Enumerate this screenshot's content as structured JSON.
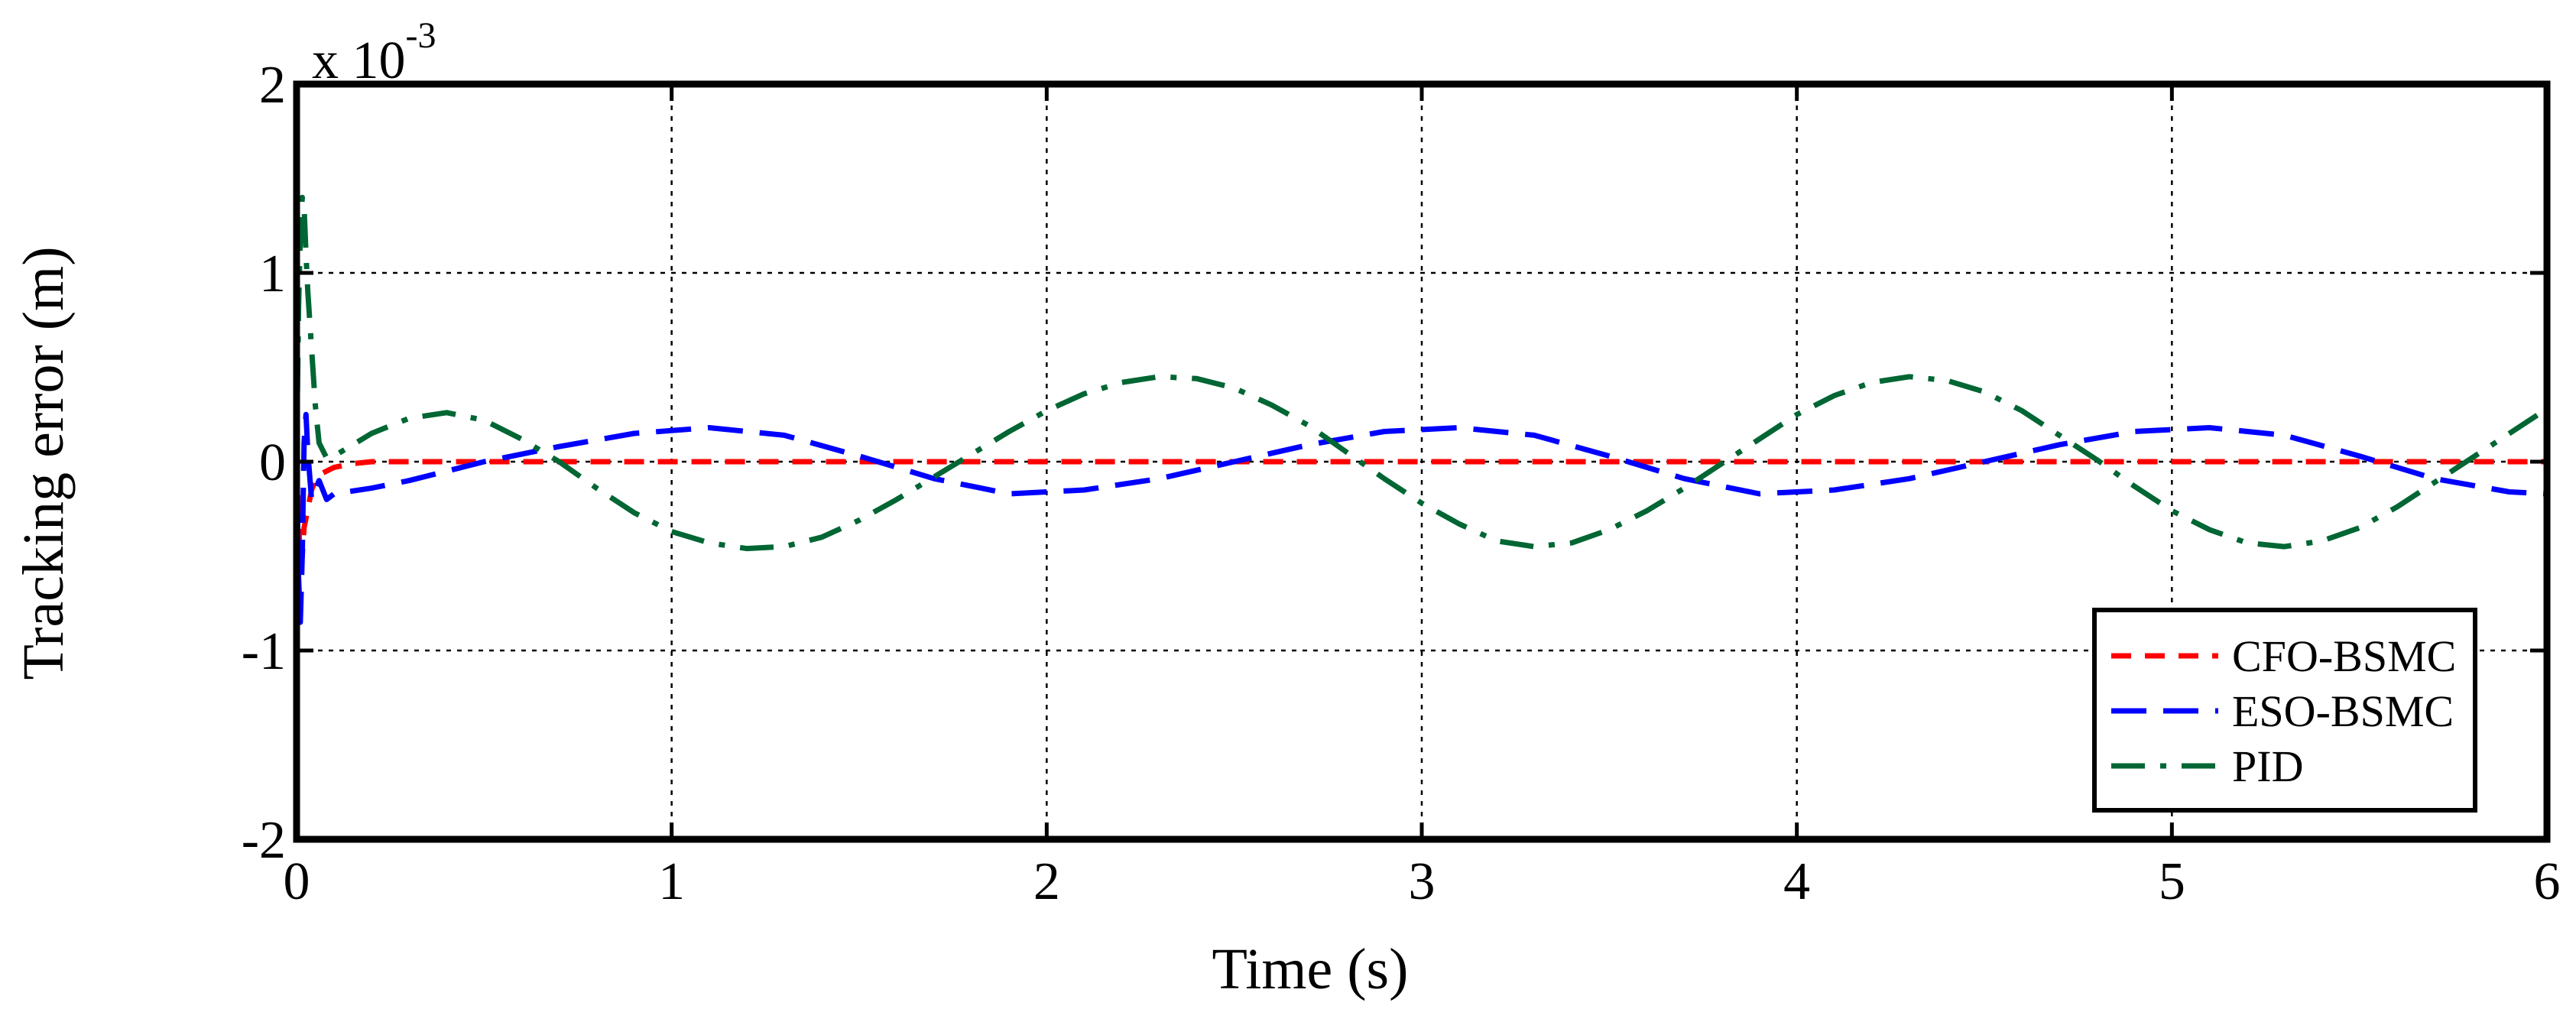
{
  "chart_data": {
    "type": "line",
    "title": "",
    "xlabel": "Time (s)",
    "ylabel": "Tracking error (m)",
    "y_scale_label": "x 10",
    "y_scale_exponent": "-3",
    "xlim": [
      0,
      6
    ],
    "ylim": [
      -2,
      2
    ],
    "x_ticks": [
      0,
      1,
      2,
      3,
      4,
      5,
      6
    ],
    "x_tick_labels": [
      "0",
      "1",
      "2",
      "3",
      "4",
      "5",
      "6"
    ],
    "y_ticks": [
      -2,
      -1,
      0,
      1,
      2
    ],
    "y_tick_labels": [
      "-2",
      "-1",
      "0",
      "1",
      "2"
    ],
    "grid": true,
    "legend_position": "bottom-right",
    "series": [
      {
        "name": "CFO-BSMC",
        "color": "#ff0000",
        "dash": "dashed",
        "points": [
          [
            0,
            0
          ],
          [
            0.005,
            -0.3
          ],
          [
            0.01,
            -0.55
          ],
          [
            0.015,
            -0.5
          ],
          [
            0.02,
            -0.35
          ],
          [
            0.03,
            -0.25
          ],
          [
            0.04,
            -0.15
          ],
          [
            0.05,
            -0.1
          ],
          [
            0.07,
            -0.06
          ],
          [
            0.1,
            -0.03
          ],
          [
            0.15,
            -0.01
          ],
          [
            0.2,
            0
          ],
          [
            0.5,
            0
          ],
          [
            1,
            0
          ],
          [
            2,
            0
          ],
          [
            3,
            0
          ],
          [
            4,
            0
          ],
          [
            5,
            0
          ],
          [
            6,
            0
          ]
        ]
      },
      {
        "name": "ESO-BSMC",
        "color": "#0000ff",
        "dash": "long-dashed",
        "points": [
          [
            0,
            0
          ],
          [
            0.005,
            -0.6
          ],
          [
            0.01,
            -0.85
          ],
          [
            0.015,
            -0.5
          ],
          [
            0.02,
            0.1
          ],
          [
            0.025,
            0.25
          ],
          [
            0.03,
            0.05
          ],
          [
            0.04,
            -0.2
          ],
          [
            0.05,
            -0.15
          ],
          [
            0.06,
            -0.1
          ],
          [
            0.08,
            -0.2
          ],
          [
            0.1,
            -0.17
          ],
          [
            0.2,
            -0.14
          ],
          [
            0.3,
            -0.1
          ],
          [
            0.4,
            -0.05
          ],
          [
            0.5,
            0
          ],
          [
            0.7,
            0.08
          ],
          [
            0.9,
            0.15
          ],
          [
            1.1,
            0.18
          ],
          [
            1.3,
            0.14
          ],
          [
            1.5,
            0.03
          ],
          [
            1.7,
            -0.09
          ],
          [
            1.9,
            -0.17
          ],
          [
            2.1,
            -0.15
          ],
          [
            2.3,
            -0.09
          ],
          [
            2.5,
            0.0
          ],
          [
            2.7,
            0.09
          ],
          [
            2.9,
            0.16
          ],
          [
            3.1,
            0.18
          ],
          [
            3.3,
            0.14
          ],
          [
            3.5,
            0.03
          ],
          [
            3.7,
            -0.09
          ],
          [
            3.9,
            -0.17
          ],
          [
            4.1,
            -0.15
          ],
          [
            4.3,
            -0.09
          ],
          [
            4.5,
            0.0
          ],
          [
            4.7,
            0.09
          ],
          [
            4.9,
            0.16
          ],
          [
            5.1,
            0.18
          ],
          [
            5.3,
            0.14
          ],
          [
            5.5,
            0.03
          ],
          [
            5.7,
            -0.09
          ],
          [
            5.9,
            -0.16
          ],
          [
            6.0,
            -0.17
          ]
        ]
      },
      {
        "name": "PID",
        "color": "#006633",
        "dash": "dash-dot",
        "points": [
          [
            0,
            0
          ],
          [
            0.005,
            0.8
          ],
          [
            0.01,
            1.2
          ],
          [
            0.015,
            1.4
          ],
          [
            0.02,
            1.35
          ],
          [
            0.025,
            1.1
          ],
          [
            0.03,
            0.9
          ],
          [
            0.04,
            0.6
          ],
          [
            0.05,
            0.3
          ],
          [
            0.06,
            0.1
          ],
          [
            0.08,
            0.02
          ],
          [
            0.1,
            0.03
          ],
          [
            0.2,
            0.15
          ],
          [
            0.3,
            0.23
          ],
          [
            0.4,
            0.26
          ],
          [
            0.5,
            0.22
          ],
          [
            0.6,
            0.12
          ],
          [
            0.7,
            0.0
          ],
          [
            0.8,
            -0.14
          ],
          [
            0.9,
            -0.27
          ],
          [
            1.0,
            -0.37
          ],
          [
            1.1,
            -0.43
          ],
          [
            1.2,
            -0.46
          ],
          [
            1.3,
            -0.45
          ],
          [
            1.4,
            -0.4
          ],
          [
            1.5,
            -0.31
          ],
          [
            1.6,
            -0.2
          ],
          [
            1.7,
            -0.08
          ],
          [
            1.8,
            0.04
          ],
          [
            1.9,
            0.16
          ],
          [
            2.0,
            0.27
          ],
          [
            2.1,
            0.36
          ],
          [
            2.2,
            0.42
          ],
          [
            2.3,
            0.45
          ],
          [
            2.4,
            0.44
          ],
          [
            2.5,
            0.39
          ],
          [
            2.6,
            0.3
          ],
          [
            2.7,
            0.19
          ],
          [
            2.8,
            0.05
          ],
          [
            2.9,
            -0.09
          ],
          [
            3.0,
            -0.22
          ],
          [
            3.1,
            -0.33
          ],
          [
            3.2,
            -0.42
          ],
          [
            3.3,
            -0.45
          ],
          [
            3.4,
            -0.43
          ],
          [
            3.5,
            -0.36
          ],
          [
            3.6,
            -0.26
          ],
          [
            3.7,
            -0.14
          ],
          [
            3.8,
            -0.01
          ],
          [
            3.9,
            0.12
          ],
          [
            4.0,
            0.25
          ],
          [
            4.1,
            0.35
          ],
          [
            4.2,
            0.42
          ],
          [
            4.3,
            0.45
          ],
          [
            4.4,
            0.43
          ],
          [
            4.5,
            0.37
          ],
          [
            4.6,
            0.27
          ],
          [
            4.7,
            0.14
          ],
          [
            4.8,
            0.01
          ],
          [
            4.9,
            -0.13
          ],
          [
            5.0,
            -0.26
          ],
          [
            5.1,
            -0.36
          ],
          [
            5.2,
            -0.43
          ],
          [
            5.3,
            -0.45
          ],
          [
            5.4,
            -0.42
          ],
          [
            5.5,
            -0.35
          ],
          [
            5.6,
            -0.24
          ],
          [
            5.7,
            -0.11
          ],
          [
            5.8,
            0.02
          ],
          [
            5.9,
            0.15
          ],
          [
            6.0,
            0.28
          ]
        ]
      }
    ]
  }
}
